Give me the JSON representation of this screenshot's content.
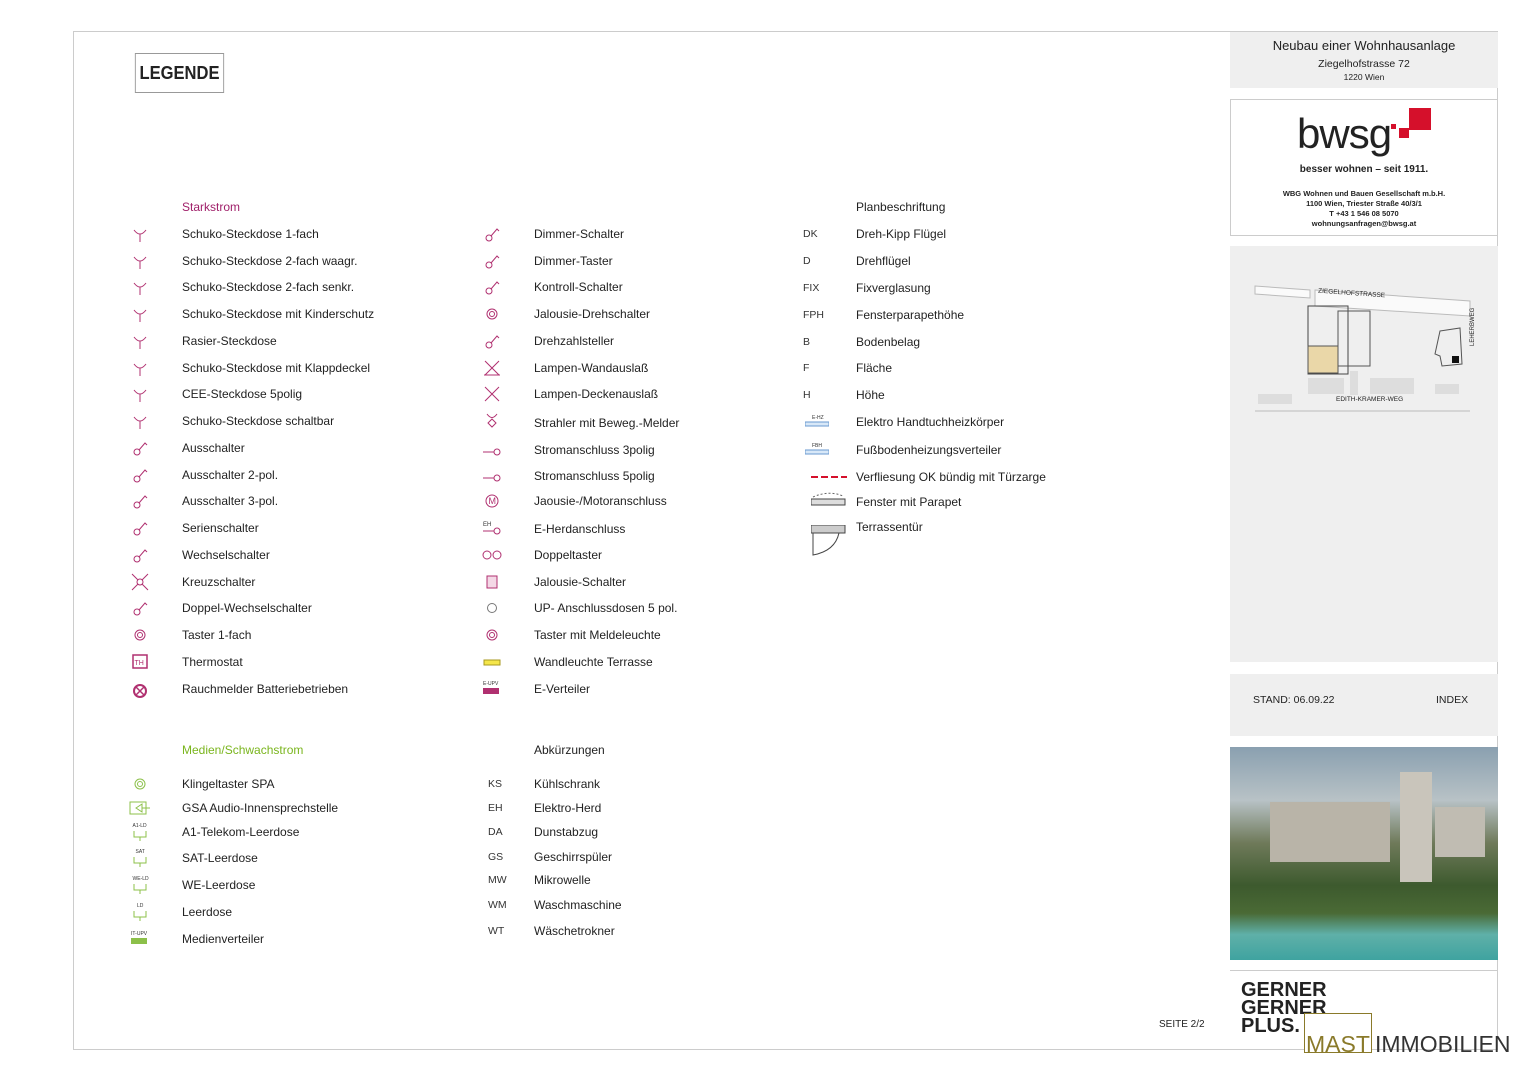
{
  "title": "LEGENDE",
  "colors": {
    "starkstrom": "#a0206a",
    "medien": "#7ab51d",
    "icon_magenta": "#b03070",
    "icon_green": "#8cc04a",
    "brand_red": "#d5102b",
    "mast_gold": "#8a7a2a"
  },
  "starkstrom": {
    "heading": "Starkstrom",
    "items": [
      {
        "icon": "schuko-1-icon",
        "label": "Schuko-Steckdose 1-fach"
      },
      {
        "icon": "schuko-2-waagr-icon",
        "label": "Schuko-Steckdose 2-fach waagr."
      },
      {
        "icon": "schuko-2-senkr-icon",
        "label": "Schuko-Steckdose 2-fach senkr."
      },
      {
        "icon": "schuko-kinderschutz-icon",
        "label": "Schuko-Steckdose mit Kinderschutz"
      },
      {
        "icon": "rasier-steckdose-icon",
        "label": "Rasier-Steckdose"
      },
      {
        "icon": "schuko-klappdeckel-icon",
        "label": "Schuko-Steckdose mit Klappdeckel"
      },
      {
        "icon": "cee-steckdose-icon",
        "label": "CEE-Steckdose 5polig"
      },
      {
        "icon": "schuko-schaltbar-icon",
        "label": "Schuko-Steckdose schaltbar"
      },
      {
        "icon": "ausschalter-icon",
        "label": "Ausschalter"
      },
      {
        "icon": "ausschalter-2pol-icon",
        "label": "Ausschalter 2-pol."
      },
      {
        "icon": "ausschalter-3pol-icon",
        "label": "Ausschalter 3-pol."
      },
      {
        "icon": "serienschalter-icon",
        "label": "Serienschalter"
      },
      {
        "icon": "wechselschalter-icon",
        "label": "Wechselschalter"
      },
      {
        "icon": "kreuzschalter-icon",
        "label": "Kreuzschalter"
      },
      {
        "icon": "doppel-wechselschalter-icon",
        "label": "Doppel-Wechselschalter"
      },
      {
        "icon": "taster-icon",
        "label": "Taster 1-fach"
      },
      {
        "icon": "thermostat-icon",
        "label": "Thermostat",
        "glyph": "TH"
      },
      {
        "icon": "rauchmelder-icon",
        "label": "Rauchmelder Batteriebetrieben"
      }
    ]
  },
  "starkstrom2": {
    "items": [
      {
        "icon": "dimmer-schalter-icon",
        "label": "Dimmer-Schalter"
      },
      {
        "icon": "dimmer-taster-icon",
        "label": "Dimmer-Taster"
      },
      {
        "icon": "kontroll-schalter-icon",
        "label": "Kontroll-Schalter"
      },
      {
        "icon": "jalousie-drehschalter-icon",
        "label": "Jalousie-Drehschalter"
      },
      {
        "icon": "drehzahlsteller-icon",
        "label": "Drehzahlsteller"
      },
      {
        "icon": "lampe-wand-icon",
        "label": "Lampen-Wandauslaß"
      },
      {
        "icon": "lampe-decke-icon",
        "label": "Lampen-Deckenauslaß"
      },
      {
        "icon": "strahler-melder-icon",
        "label": "Strahler mit Beweg.-Melder"
      },
      {
        "icon": "stromanschluss-3-icon",
        "label": "Stromanschluss 3polig"
      },
      {
        "icon": "stromanschluss-5-icon",
        "label": "Stromanschluss 5polig"
      },
      {
        "icon": "motor-icon",
        "label": "Jaousie-/Motoranschluss",
        "glyph": "M"
      },
      {
        "icon": "herd-icon",
        "label": "E-Herdanschluss",
        "glyph": "EH"
      },
      {
        "icon": "doppeltaster-icon",
        "label": "Doppeltaster"
      },
      {
        "icon": "jalousie-schalter-icon",
        "label": "Jalousie-Schalter"
      },
      {
        "icon": "up-dose-icon",
        "label": "UP- Anschlussdosen 5 pol."
      },
      {
        "icon": "taster-melde-icon",
        "label": "Taster mit Meldeleuchte"
      },
      {
        "icon": "wandleuchte-icon",
        "label": "Wandleuchte Terrasse"
      },
      {
        "icon": "e-verteiler-icon",
        "label": "E-Verteiler",
        "glyph": "E-UPV"
      }
    ]
  },
  "planbeschriftung": {
    "heading": "Planbeschriftung",
    "items": [
      {
        "abbr": "DK",
        "label": "Dreh-Kipp Flügel"
      },
      {
        "abbr": "D",
        "label": "Drehflügel"
      },
      {
        "abbr": "FIX",
        "label": "Fixverglasung"
      },
      {
        "abbr": "FPH",
        "label": "Fensterparapethöhe"
      },
      {
        "abbr": "B",
        "label": "Bodenbelag"
      },
      {
        "abbr": "F",
        "label": "Fläche"
      },
      {
        "abbr": "H",
        "label": "Höhe"
      },
      {
        "icon": "handtuchheizkoerper-icon",
        "glyph": "E-HZ",
        "label": "Elektro Handtuchheizkörper"
      },
      {
        "icon": "fbh-verteiler-icon",
        "glyph": "FBH",
        "label": "Fußbodenheizungsverteiler"
      },
      {
        "icon": "dashed-red-line-icon",
        "label": "Verfliesung OK bündig mit Türzarge"
      },
      {
        "icon": "fenster-parapet-icon",
        "label": "Fenster mit Parapet"
      },
      {
        "icon": "terrassentuer-icon",
        "label": "Terrassentür"
      }
    ]
  },
  "medien": {
    "heading": "Medien/Schwachstrom",
    "items": [
      {
        "icon": "klingeltaster-icon",
        "label": "Klingeltaster SPA"
      },
      {
        "icon": "gsa-audio-icon",
        "label": "GSA Audio-Innensprechstelle"
      },
      {
        "icon": "leerdose-icon",
        "glyph": "A1-LD",
        "label": "A1-Telekom-Leerdose"
      },
      {
        "icon": "leerdose-icon",
        "glyph": "SAT",
        "label": "SAT-Leerdose"
      },
      {
        "icon": "leerdose-icon",
        "glyph": "WE-LD",
        "label": "WE-Leerdose"
      },
      {
        "icon": "leerdose-icon",
        "glyph": "LD",
        "label": "Leerdose"
      },
      {
        "icon": "medienverteiler-icon",
        "glyph": "IT-UPV",
        "label": "Medienverteiler"
      }
    ]
  },
  "abkuerzungen": {
    "heading": "Abkürzungen",
    "items": [
      {
        "abbr": "KS",
        "label": "Kühlschrank"
      },
      {
        "abbr": "EH",
        "label": "Elektro-Herd"
      },
      {
        "abbr": "DA",
        "label": "Dunstabzug"
      },
      {
        "abbr": "GS",
        "label": "Geschirrspüler"
      },
      {
        "abbr": "MW",
        "label": "Mikrowelle"
      },
      {
        "abbr": "WM",
        "label": "Waschmaschine"
      },
      {
        "abbr": "WT",
        "label": "Wäschetrokner"
      }
    ]
  },
  "page": "SEITE 2/2",
  "project": {
    "title": "Neubau einer Wohnhausanlage",
    "street": "Ziegelhofstrasse 72",
    "city": "1220 Wien"
  },
  "company": {
    "logo": "bwsg",
    "slogan": "besser wohnen – seit 1911.",
    "name": "WBG Wohnen und Bauen Gesellschaft m.b.H.",
    "address": "1100 Wien, Triester Straße 40/3/1",
    "phone": "T +43 1 546 08 5070",
    "email": "wohnungsanfragen@bwsg.at"
  },
  "map": {
    "street_top": "ZIEGELHOFSTRASSE",
    "street_bottom": "EDITH-KRAMER-WEG",
    "street_right": "LEHERBWEG"
  },
  "stand": {
    "label": "STAND: 06.09.22",
    "index": "INDEX"
  },
  "footer": {
    "architect": [
      "GERNER",
      "GERNER",
      "PLUS."
    ],
    "agent_a": "MAST",
    "agent_b": "IMMOBILIEN"
  }
}
